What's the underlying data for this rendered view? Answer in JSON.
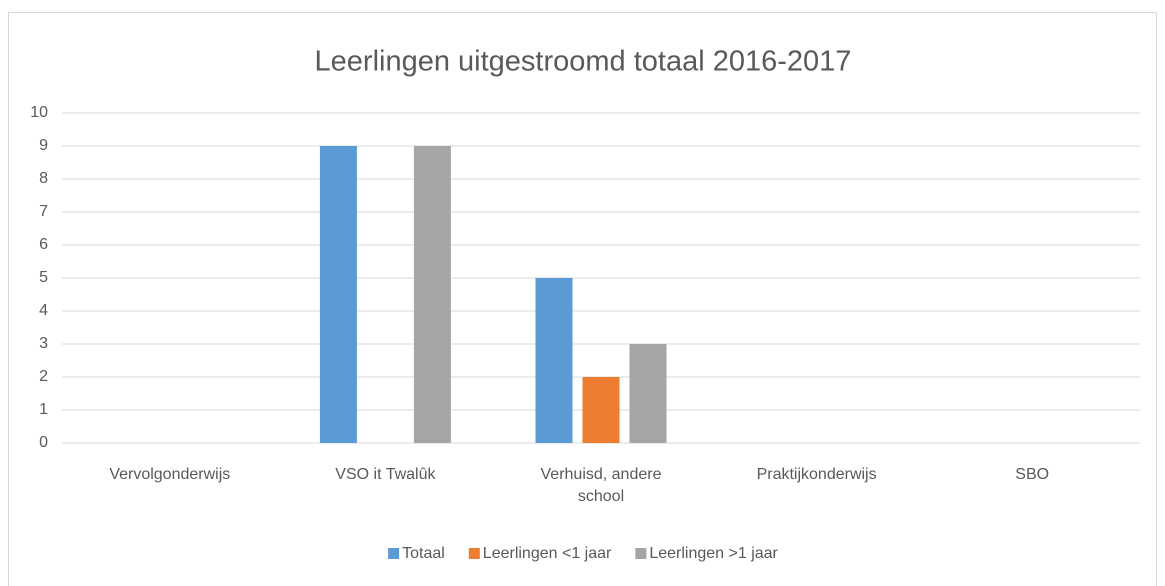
{
  "chart_data": {
    "type": "bar",
    "title": "Leerlingen uitgestroomd totaal 2016-2017",
    "categories": [
      "Vervolgonderwijs",
      "VSO it Twalûk",
      "Verhuisd, andere school",
      "Praktijkonderwijs",
      "SBO"
    ],
    "series": [
      {
        "name": "Totaal",
        "color": "#5b9bd5",
        "values": [
          0,
          9,
          5,
          0,
          0
        ]
      },
      {
        "name": "Leerlingen <1 jaar",
        "color": "#ed7d31",
        "values": [
          0,
          0,
          2,
          0,
          0
        ]
      },
      {
        "name": "Leerlingen >1 jaar",
        "color": "#a5a5a5",
        "values": [
          0,
          9,
          3,
          0,
          0
        ]
      }
    ],
    "ylim": [
      0,
      10
    ],
    "yticks": [
      0,
      1,
      2,
      3,
      4,
      5,
      6,
      7,
      8,
      9,
      10
    ],
    "grid": true,
    "legend": "bottom"
  }
}
